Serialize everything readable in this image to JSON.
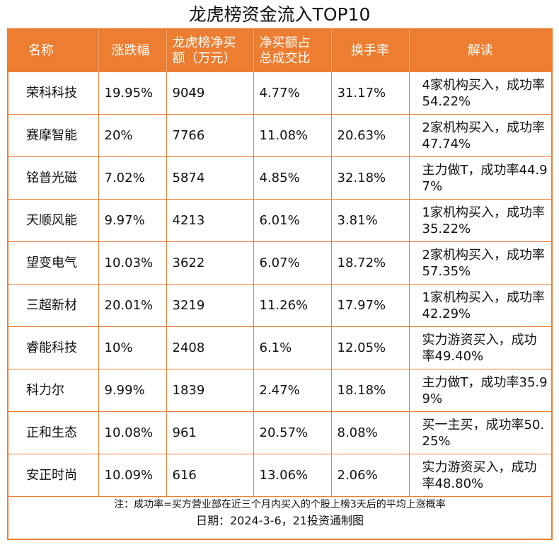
{
  "title": "龙虎榜资金流入TOP10",
  "columns": [
    {
      "line1": "名称",
      "line2": ""
    },
    {
      "line1": "涨跌幅",
      "line2": ""
    },
    {
      "line1": "龙虎榜净买",
      "line2": "额（万元）"
    },
    {
      "line1": "净买额占",
      "line2": "总成交比"
    },
    {
      "line1": "换手率",
      "line2": ""
    },
    {
      "line1": "解读",
      "line2": ""
    }
  ],
  "rows": [
    {
      "name": "荣科科技",
      "change": "19.95%",
      "net_buy": "9049",
      "ratio": "4.77%",
      "turnover": "31.17%",
      "interp": "4家机构买入，成功率54.22%"
    },
    {
      "name": "赛摩智能",
      "change": "20%",
      "net_buy": "7766",
      "ratio": "11.08%",
      "turnover": "20.63%",
      "interp": "2家机构买入，成功率47.74%"
    },
    {
      "name": "铭普光磁",
      "change": "7.02%",
      "net_buy": "5874",
      "ratio": "4.85%",
      "turnover": "32.18%",
      "interp": "主力做T，成功率44.97%"
    },
    {
      "name": "天顺风能",
      "change": "9.97%",
      "net_buy": "4213",
      "ratio": "6.01%",
      "turnover": "3.81%",
      "interp": "1家机构买入，成功率35.22%"
    },
    {
      "name": "望变电气",
      "change": "10.03%",
      "net_buy": "3622",
      "ratio": "6.07%",
      "turnover": "18.72%",
      "interp": "2家机构买入，成功率57.35%"
    },
    {
      "name": "三超新材",
      "change": "20.01%",
      "net_buy": "3219",
      "ratio": "11.26%",
      "turnover": "17.97%",
      "interp": "1家机构买入，成功率42.29%"
    },
    {
      "name": "睿能科技",
      "change": "10%",
      "net_buy": "2408",
      "ratio": "6.1%",
      "turnover": "12.05%",
      "interp": "实力游资买入，成功率49.40%"
    },
    {
      "name": "科力尔",
      "change": "9.99%",
      "net_buy": "1839",
      "ratio": "2.47%",
      "turnover": "18.18%",
      "interp": "主力做T，成功率35.99%"
    },
    {
      "name": "正和生态",
      "change": "10.08%",
      "net_buy": "961",
      "ratio": "20.57%",
      "turnover": "8.08%",
      "interp": "买一主买，成功率50.25%"
    },
    {
      "name": "安正时尚",
      "change": "10.09%",
      "net_buy": "616",
      "ratio": "13.06%",
      "turnover": "2.06%",
      "interp": "实力游资买入，成功率48.80%"
    }
  ],
  "footer": {
    "note": "注：成功率=买方营业部在近三个月内买入的个股上榜3天后的平均上涨概率",
    "date": "日期：2024-3-6，21投资通制图"
  },
  "colors": {
    "accent": "#ED7D31",
    "header_text": "#FFFFFF",
    "text": "#111111"
  }
}
